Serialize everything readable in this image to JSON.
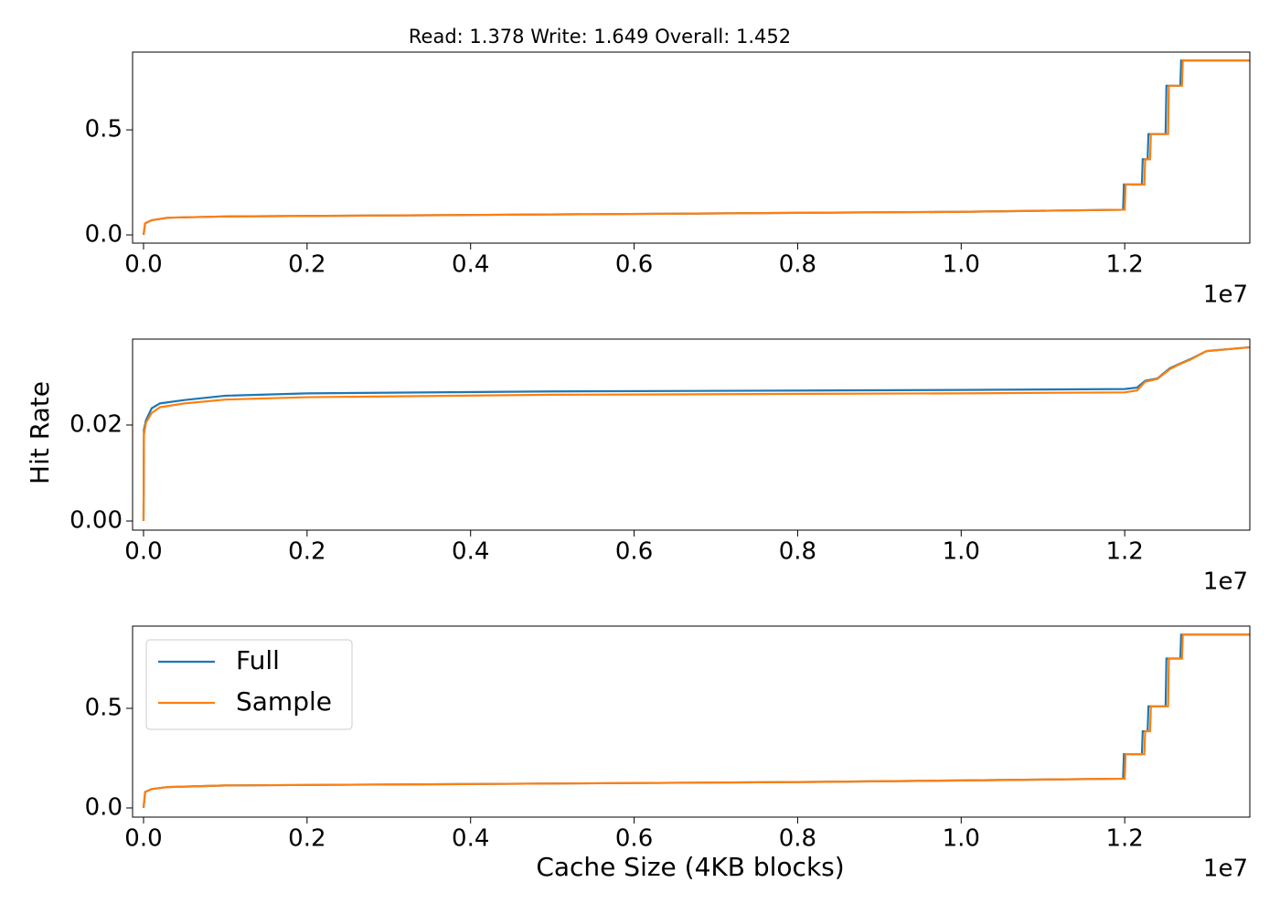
{
  "chart_data": [
    {
      "type": "line",
      "title": "Read: 1.378 Write: 1.649 Overall: 1.452",
      "x_offset_label": "1e7",
      "xlim": [
        -0.0134,
        1.353
      ],
      "xticks": [
        {
          "value": 0,
          "label": "0.0"
        },
        0.2,
        0.4,
        0.6,
        0.8,
        {
          "value": 1,
          "label": "1.0"
        },
        1.2
      ],
      "ylim": [
        -0.039,
        0.87
      ],
      "yticks": [
        {
          "value": 0,
          "label": "0.0"
        },
        0.5
      ],
      "series": [
        {
          "color": "#1f77b4",
          "x": [
            0,
            0.002,
            0.01,
            0.03,
            0.1,
            0.4,
            0.8,
            1.0,
            1.198,
            1.199,
            1.221,
            1.222,
            1.228,
            1.229,
            1.25,
            1.251,
            1.268,
            1.269,
            1.353
          ],
          "values": [
            0,
            0.055,
            0.07,
            0.082,
            0.088,
            0.095,
            0.105,
            0.11,
            0.12,
            0.24,
            0.24,
            0.36,
            0.36,
            0.48,
            0.48,
            0.71,
            0.71,
            0.83,
            0.83
          ]
        },
        {
          "color": "#ff7f0e",
          "x": [
            0,
            0.002,
            0.01,
            0.03,
            0.1,
            0.4,
            0.8,
            1.0,
            1.2,
            1.201,
            1.224,
            1.225,
            1.231,
            1.232,
            1.253,
            1.254,
            1.27,
            1.271,
            1.353
          ],
          "values": [
            0,
            0.055,
            0.07,
            0.082,
            0.088,
            0.095,
            0.105,
            0.11,
            0.12,
            0.24,
            0.24,
            0.36,
            0.36,
            0.48,
            0.48,
            0.71,
            0.71,
            0.83,
            0.83
          ]
        }
      ]
    },
    {
      "type": "line",
      "ylabel": "Hit Rate",
      "x_offset_label": "1e7",
      "xlim": [
        -0.0134,
        1.353
      ],
      "xticks": [
        {
          "value": 0,
          "label": "0.0"
        },
        0.2,
        0.4,
        0.6,
        0.8,
        {
          "value": 1,
          "label": "1.0"
        },
        1.2
      ],
      "ylim": [
        -0.0019,
        0.0379
      ],
      "yticks": [
        {
          "value": 0,
          "label": "0.00"
        },
        0.02
      ],
      "series": [
        {
          "color": "#1f77b4",
          "x": [
            0,
            0.0005,
            0.003,
            0.01,
            0.02,
            0.05,
            0.1,
            0.2,
            0.5,
            1.0,
            1.2,
            1.215,
            1.225,
            1.24,
            1.255,
            1.265,
            1.28,
            1.3,
            1.353
          ],
          "values": [
            0,
            0.019,
            0.021,
            0.0235,
            0.0245,
            0.0252,
            0.0261,
            0.0266,
            0.027,
            0.0273,
            0.0275,
            0.0278,
            0.0292,
            0.0297,
            0.0318,
            0.0326,
            0.0337,
            0.0354,
            0.0362
          ]
        },
        {
          "color": "#ff7f0e",
          "x": [
            0,
            0.0005,
            0.003,
            0.01,
            0.02,
            0.05,
            0.1,
            0.2,
            0.5,
            1.0,
            1.2,
            1.215,
            1.225,
            1.24,
            1.255,
            1.265,
            1.28,
            1.3,
            1.353
          ],
          "values": [
            0,
            0.018,
            0.0205,
            0.0225,
            0.0237,
            0.0245,
            0.0253,
            0.0258,
            0.0263,
            0.0266,
            0.0268,
            0.0272,
            0.029,
            0.0296,
            0.0316,
            0.0325,
            0.0336,
            0.0354,
            0.0362
          ]
        }
      ]
    },
    {
      "type": "line",
      "xlabel": "Cache Size (4KB blocks)",
      "x_offset_label": "1e7",
      "legend": "upper left",
      "xlim": [
        -0.0134,
        1.353
      ],
      "xticks": [
        {
          "value": 0,
          "label": "0.0"
        },
        0.2,
        0.4,
        0.6,
        0.8,
        {
          "value": 1,
          "label": "1.0"
        },
        1.2
      ],
      "ylim": [
        -0.046,
        0.913
      ],
      "yticks": [
        {
          "value": 0,
          "label": "0.0"
        },
        0.5
      ],
      "series": [
        {
          "name": "Full",
          "color": "#1f77b4",
          "x": [
            0,
            0.002,
            0.01,
            0.03,
            0.1,
            0.4,
            0.8,
            1.0,
            1.198,
            1.199,
            1.221,
            1.222,
            1.228,
            1.229,
            1.25,
            1.251,
            1.268,
            1.269,
            1.353
          ],
          "values": [
            0,
            0.08,
            0.095,
            0.105,
            0.113,
            0.12,
            0.13,
            0.138,
            0.147,
            0.27,
            0.27,
            0.385,
            0.385,
            0.51,
            0.51,
            0.75,
            0.75,
            0.87,
            0.87
          ]
        },
        {
          "name": "Sample",
          "color": "#ff7f0e",
          "x": [
            0,
            0.002,
            0.01,
            0.03,
            0.1,
            0.4,
            0.8,
            1.0,
            1.2,
            1.201,
            1.224,
            1.225,
            1.231,
            1.232,
            1.253,
            1.254,
            1.27,
            1.271,
            1.353
          ],
          "values": [
            0,
            0.08,
            0.095,
            0.105,
            0.113,
            0.12,
            0.13,
            0.138,
            0.147,
            0.27,
            0.27,
            0.385,
            0.385,
            0.51,
            0.51,
            0.75,
            0.75,
            0.87,
            0.87
          ]
        }
      ]
    }
  ]
}
